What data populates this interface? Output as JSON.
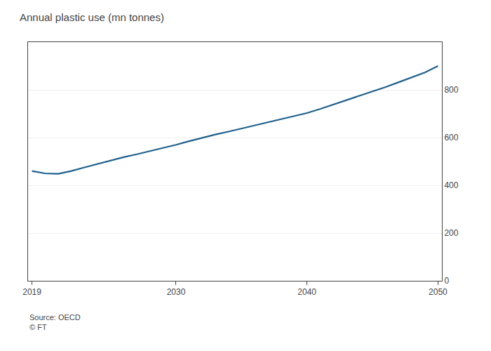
{
  "chart_data": {
    "type": "line",
    "title": "Annual plastic use (mn tonnes)",
    "annotations": [
      "Source: OECD",
      "© FT"
    ],
    "x": [
      2019,
      2020,
      2021,
      2022,
      2023,
      2024,
      2025,
      2026,
      2027,
      2028,
      2029,
      2030,
      2031,
      2032,
      2033,
      2034,
      2035,
      2036,
      2037,
      2038,
      2039,
      2040,
      2041,
      2042,
      2043,
      2044,
      2045,
      2046,
      2047,
      2048,
      2049,
      2050
    ],
    "values": [
      460,
      450,
      448,
      460,
      475,
      490,
      505,
      518,
      530,
      543,
      555,
      570,
      585,
      600,
      613,
      625,
      638,
      651,
      664,
      677,
      690,
      703,
      720,
      738,
      757,
      775,
      793,
      812,
      832,
      852,
      873,
      900
    ],
    "color": "#1f5f8b",
    "xlim": [
      2018.7,
      2050.3
    ],
    "xticks": [
      2019,
      2030,
      2040,
      2050
    ],
    "ylim": [
      0,
      1000
    ],
    "yticks": [
      0,
      200,
      400,
      600,
      800
    ],
    "grid": true
  }
}
